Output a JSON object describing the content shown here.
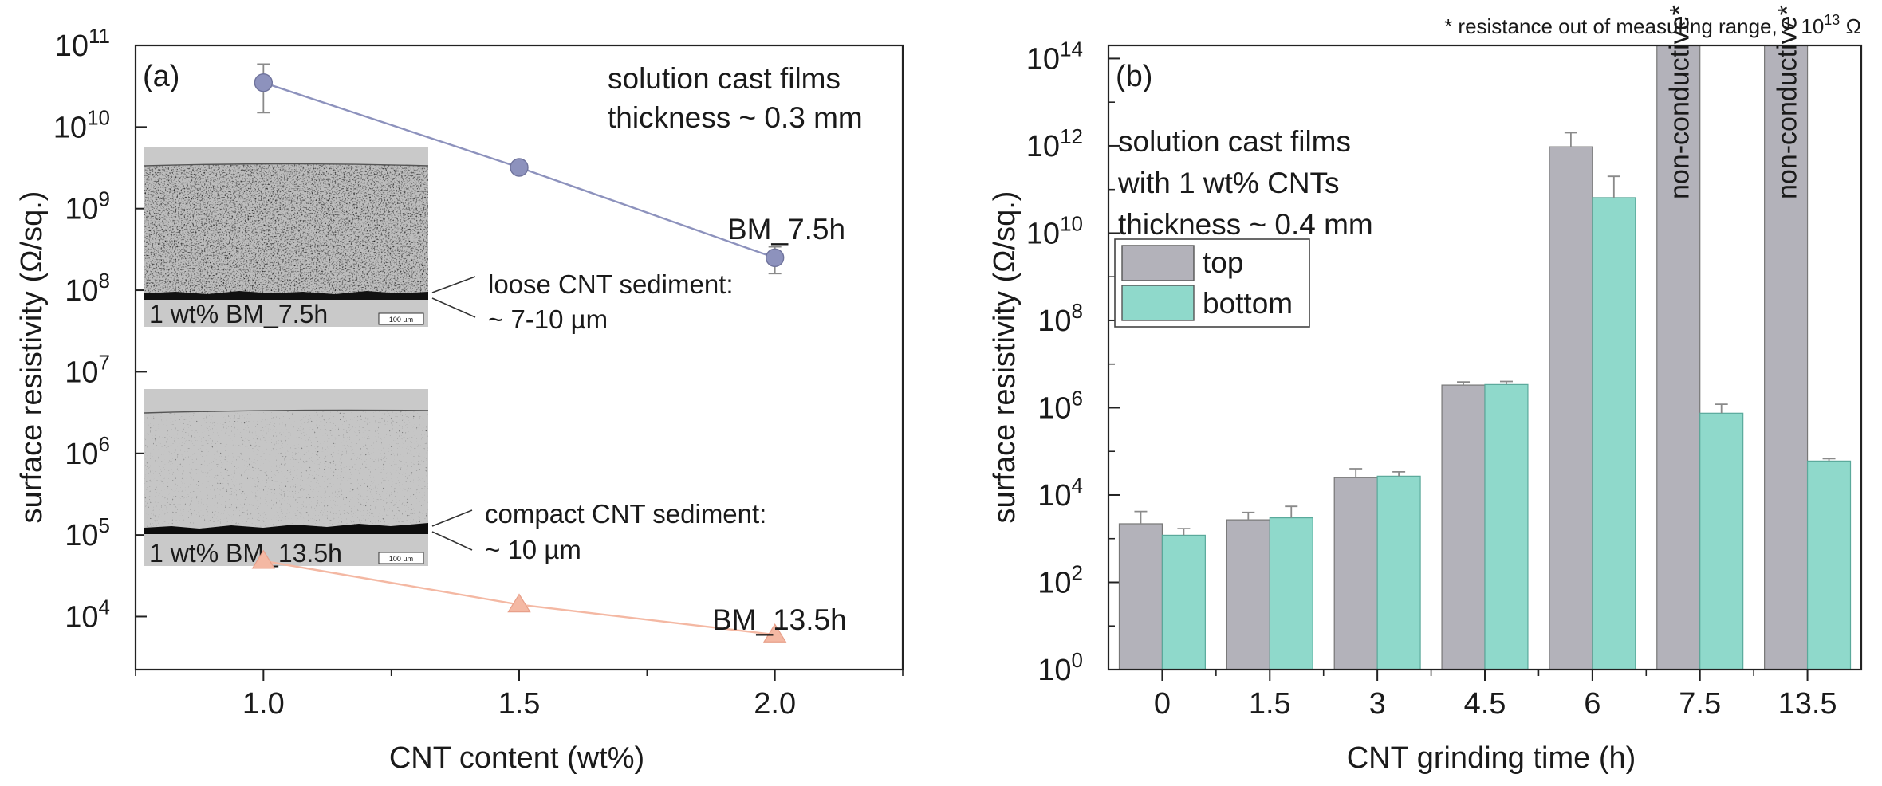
{
  "colors": {
    "series_7_5h": "#8d92bd",
    "series_13_5h": "#f4b8a3",
    "bar_top": "#b3b2ba",
    "bar_bottom": "#8fd9cb",
    "axis": "#222222"
  },
  "chart_data": [
    {
      "panel": "(a)",
      "type": "scatter",
      "yscale": "log",
      "xlabel": "CNT content (wt%)",
      "ylabel": "surface resistivity (Ω/sq.)",
      "x_ticks": [
        "1.0",
        "1.5",
        "2.0"
      ],
      "xlim": [
        0.75,
        2.25
      ],
      "ylim_exp": [
        3.35,
        11.0
      ],
      "y_tick_exponents": [
        4,
        5,
        6,
        7,
        8,
        9,
        10,
        11
      ],
      "y_tick_base": "10",
      "series": [
        {
          "name": "BM_7.5h",
          "marker": "circle",
          "x": [
            1.0,
            1.5,
            2.0
          ],
          "y": [
            35000000000.0,
            3200000000.0,
            250000000.0
          ],
          "err_low": [
            15000000000.0,
            null,
            160000000.0
          ],
          "err_high": [
            59000000000.0,
            null,
            340000000.0
          ]
        },
        {
          "name": "BM_13.5h",
          "marker": "triangle",
          "x": [
            1.0,
            1.5,
            2.0
          ],
          "y": [
            48000,
            14000,
            6000
          ]
        }
      ],
      "annotations": {
        "title_line1": "solution cast films",
        "title_line2": "thickness ~ 0.3 mm",
        "label_series1": "BM_7.5h",
        "label_series2": "BM_13.5h",
        "loose_line1": "loose CNT sediment:",
        "loose_line2": "~ 7-10 µm",
        "compact_line1": "compact CNT sediment:",
        "compact_line2": "~ 10 µm",
        "inset1_caption": "1 wt% BM_7.5h",
        "inset2_caption": "1 wt% BM_13.5h",
        "scale_bar": "100 µm"
      }
    },
    {
      "panel": "(b)",
      "type": "bar",
      "yscale": "log",
      "xlabel": "CNT grinding time (h)",
      "ylabel": "surface resistivity (Ω/sq.)",
      "categories": [
        "0",
        "1.5",
        "3",
        "4.5",
        "6",
        "7.5",
        "13.5"
      ],
      "ylim_exp": [
        0,
        14.3
      ],
      "y_tick_exponents": [
        0,
        2,
        4,
        6,
        8,
        10,
        12,
        14
      ],
      "y_tick_base": "10",
      "series": [
        {
          "name": "top",
          "values": [
            2200,
            2700,
            25000,
            3300000,
            950000000000,
            null,
            null
          ],
          "err_high": [
            4200,
            4000,
            40000,
            3900000,
            2000000000000,
            null,
            null
          ]
        },
        {
          "name": "bottom",
          "values": [
            1200,
            3000,
            27000,
            3400000,
            65000000000,
            750000,
            60000
          ],
          "err_high": [
            1700,
            5500,
            34000,
            4000000,
            200000000000,
            1200000,
            68000
          ]
        }
      ],
      "out_of_range_label": "non-conductive*",
      "footnote": "* resistance out of measuring range, > 10",
      "footnote_exp": "13",
      "footnote_unit": "Ω",
      "annotations": {
        "line1": "solution cast films",
        "line2": "with 1 wt% CNTs",
        "line3": "thickness ~ 0.4 mm"
      },
      "legend": [
        "top",
        "bottom"
      ],
      "legend_placement": "upper-left"
    }
  ]
}
